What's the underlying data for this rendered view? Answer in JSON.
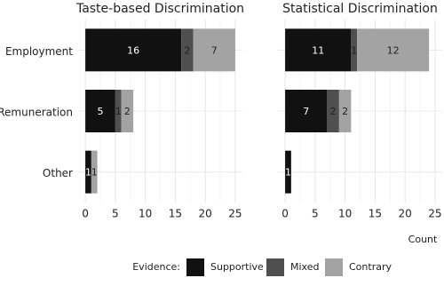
{
  "chart_data": {
    "type": "bar",
    "orientation": "horizontal",
    "stacked": true,
    "categories": [
      "Employment",
      "Remuneration",
      "Other"
    ],
    "xlim": [
      -1.2,
      26.2
    ],
    "xticks": [
      0,
      5,
      10,
      15,
      20,
      25
    ],
    "grid": true,
    "xlabel": "Count",
    "legend_title": "Evidence:",
    "legend_position": "bottom",
    "series": [
      {
        "name": "Supportive",
        "color": "#111111"
      },
      {
        "name": "Mixed",
        "color": "#4f4f4f"
      },
      {
        "name": "Contrary",
        "color": "#a3a3a3"
      }
    ],
    "panels": [
      {
        "title": "Taste-based Discrimination",
        "series": [
          {
            "values": [
              16,
              5,
              1
            ]
          },
          {
            "values": [
              2,
              1,
              0
            ]
          },
          {
            "values": [
              7,
              2,
              1
            ]
          }
        ]
      },
      {
        "title": "Statistical Discrimination",
        "series": [
          {
            "values": [
              11,
              7,
              1
            ]
          },
          {
            "values": [
              1,
              2,
              0
            ]
          },
          {
            "values": [
              12,
              2,
              0
            ]
          }
        ]
      }
    ]
  }
}
